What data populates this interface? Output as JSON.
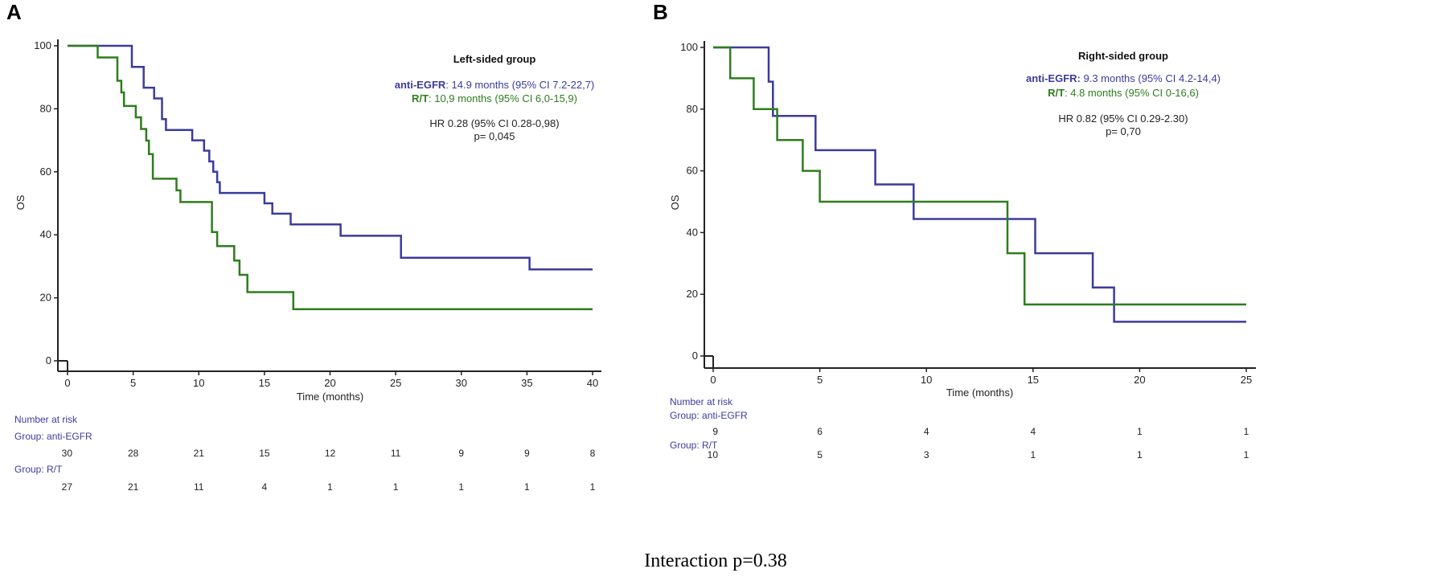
{
  "colors": {
    "anti_egfr": "#3b3b9e",
    "rt": "#2e7d1e",
    "axis": "#222222"
  },
  "footer": "Interaction p=0.38",
  "chart_data": [
    {
      "type": "line",
      "panel": "A",
      "ylabel": "OS",
      "xlabel": "Time (months)",
      "xlim": [
        0,
        40
      ],
      "ylim": [
        0,
        100
      ],
      "xticks": [
        0,
        5,
        10,
        15,
        20,
        25,
        30,
        35,
        40
      ],
      "yticks": [
        0,
        20,
        40,
        60,
        80,
        100
      ],
      "annotation": {
        "title": "Left-sided group",
        "anti_label": "anti-EGFR",
        "anti_text": ": 14.9 months (95% CI 7.2-22,7)",
        "rt_label": "R/T",
        "rt_text": ": 10,9 months (95% CI 6,0-15,9)",
        "hr": "HR 0.28 (95% CI 0.28-0,98)",
        "p": "p= 0,045"
      },
      "series": [
        {
          "name": "anti-EGFR",
          "color_key": "anti_egfr",
          "x": [
            0,
            4.9,
            4.9,
            5.8,
            5.8,
            6.6,
            6.6,
            7.2,
            7.2,
            7.5,
            7.5,
            9.5,
            9.5,
            10.4,
            10.4,
            10.8,
            10.8,
            11.1,
            11.1,
            11.4,
            11.4,
            11.6,
            11.6,
            15.0,
            15.0,
            15.6,
            15.6,
            17.0,
            17.0,
            20.8,
            20.8,
            25.4,
            25.4,
            35.2,
            35.2,
            40
          ],
          "y": [
            100,
            100,
            93.3,
            93.3,
            86.7,
            86.7,
            83.3,
            83.3,
            76.7,
            76.7,
            73.3,
            73.3,
            70,
            70,
            66.7,
            66.7,
            63.3,
            63.3,
            60,
            60,
            56.7,
            56.7,
            53.3,
            53.3,
            50,
            50,
            46.7,
            46.7,
            43.3,
            43.3,
            39.7,
            39.7,
            32.7,
            32.7,
            29,
            29
          ]
        },
        {
          "name": "R/T",
          "color_key": "rt",
          "x": [
            0,
            2.3,
            2.3,
            3.8,
            3.8,
            4.1,
            4.1,
            4.3,
            4.3,
            5.2,
            5.2,
            5.6,
            5.6,
            6.0,
            6.0,
            6.2,
            6.2,
            6.5,
            6.5,
            8.3,
            8.3,
            8.6,
            8.6,
            11.0,
            11.0,
            11.4,
            11.4,
            12.7,
            12.7,
            13.1,
            13.1,
            13.7,
            13.7,
            17.2,
            17.2,
            40
          ],
          "y": [
            100,
            100,
            96.3,
            96.3,
            88.9,
            88.9,
            85.2,
            85.2,
            80.9,
            80.9,
            77.3,
            77.3,
            73.6,
            73.6,
            69.9,
            69.9,
            65.6,
            65.6,
            57.8,
            57.8,
            54.1,
            54.1,
            50.4,
            50.4,
            40.9,
            40.9,
            36.4,
            36.4,
            31.8,
            31.8,
            27.3,
            27.3,
            21.8,
            21.8,
            16.4,
            16.4
          ]
        }
      ],
      "risk_table": {
        "heading": "Number at risk",
        "group1_label": "Group: anti-EGFR",
        "group1": [
          "30",
          "28",
          "21",
          "15",
          "12",
          "11",
          "9",
          "9",
          "8"
        ],
        "group2_label": "Group: R/T",
        "group2": [
          "27",
          "21",
          "11",
          "4",
          "1",
          "1",
          "1",
          "1",
          "1"
        ]
      }
    },
    {
      "type": "line",
      "panel": "B",
      "ylabel": "OS",
      "xlabel": "Time (months)",
      "xlim": [
        0,
        25
      ],
      "ylim": [
        0,
        100
      ],
      "xticks": [
        0,
        5,
        10,
        15,
        20,
        25
      ],
      "yticks": [
        0,
        20,
        40,
        60,
        80,
        100
      ],
      "annotation": {
        "title": "Right-sided group",
        "anti_label": "anti-EGFR:",
        "anti_text": " 9.3 months (95% CI 4.2-14,4)",
        "rt_label": "R/T",
        "rt_text": ": 4.8 months (95% CI 0-16,6)",
        "hr": "HR 0.82 (95% CI 0.29-2.30)",
        "p": "p= 0,70"
      },
      "series": [
        {
          "name": "anti-EGFR",
          "color_key": "anti_egfr",
          "x": [
            0,
            2.6,
            2.6,
            2.8,
            2.8,
            4.8,
            4.8,
            7.6,
            7.6,
            9.4,
            9.4,
            15.1,
            15.1,
            17.8,
            17.8,
            18.8,
            18.8,
            25
          ],
          "y": [
            100,
            100,
            88.9,
            88.9,
            77.8,
            77.8,
            66.7,
            66.7,
            55.6,
            55.6,
            44.4,
            44.4,
            33.3,
            33.3,
            22.2,
            22.2,
            11.1,
            11.1
          ]
        },
        {
          "name": "R/T",
          "color_key": "rt",
          "x": [
            0,
            0.8,
            0.8,
            1.9,
            1.9,
            3.0,
            3.0,
            4.2,
            4.2,
            5.0,
            5.0,
            13.8,
            13.8,
            14.6,
            14.6,
            25
          ],
          "y": [
            100,
            100,
            90,
            90,
            80,
            80,
            70,
            70,
            60,
            60,
            50,
            50,
            33.3,
            33.3,
            16.7,
            16.7
          ]
        }
      ],
      "risk_table": {
        "heading": "Number at risk",
        "group1_label": "Group: anti-EGFR",
        "group1": [
          "9",
          "6",
          "4",
          "4",
          "1",
          "1"
        ],
        "group2_label": "Group: R/T",
        "group2": [
          "10",
          "5",
          "3",
          "1",
          "1",
          "1"
        ]
      }
    }
  ]
}
